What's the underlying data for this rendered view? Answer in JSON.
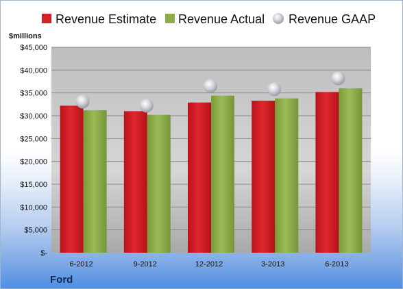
{
  "chart_data": {
    "type": "bar",
    "company": "Ford",
    "unit_label": "$millions",
    "categories": [
      "6-2012",
      "9-2012",
      "12-2012",
      "3-2013",
      "6-2013"
    ],
    "series": [
      {
        "name": "Revenue Estimate",
        "kind": "bar",
        "color": "#d42027",
        "values": [
          32200,
          31000,
          32900,
          33300,
          35200
        ]
      },
      {
        "name": "Revenue Actual",
        "kind": "bar",
        "color": "#8fae4a",
        "values": [
          31200,
          30200,
          34400,
          33800,
          36000
        ]
      },
      {
        "name": "Revenue GAAP",
        "kind": "marker",
        "color": "#c9ccd6",
        "values": [
          33100,
          32200,
          36500,
          35800,
          38200
        ]
      }
    ],
    "yticks": [
      "$-",
      "$5,000",
      "$10,000",
      "$15,000",
      "$20,000",
      "$25,000",
      "$30,000",
      "$35,000",
      "$40,000",
      "$45,000"
    ],
    "ylim": [
      0,
      45000
    ],
    "ystep": 5000,
    "grid": true,
    "legend_position": "top"
  }
}
